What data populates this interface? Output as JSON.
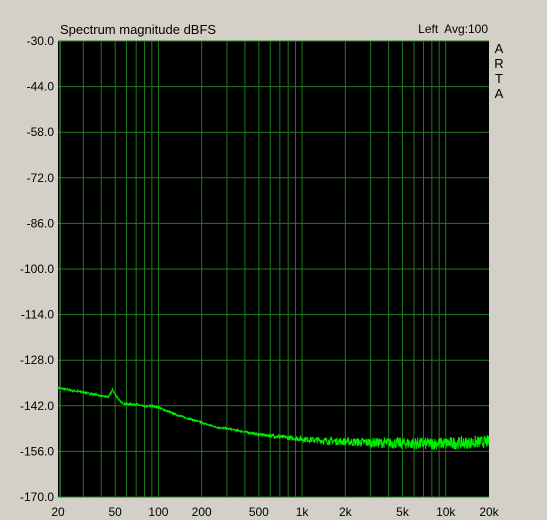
{
  "header": {
    "title": "Spectrum magnitude dBFS",
    "info": "Left  Avg:100",
    "brand": "ARTA"
  },
  "colors": {
    "background": "#d4d0c8",
    "plot_background": "#000000",
    "grid": "#1f7a1f",
    "trace": "#00ee00"
  },
  "chart_data": {
    "type": "line",
    "title": "Spectrum magnitude dBFS",
    "xscale": "log",
    "xlim": [
      20,
      20000
    ],
    "ylim": [
      -170,
      -30
    ],
    "xticks": [
      {
        "value": 20,
        "label": "20"
      },
      {
        "value": 50,
        "label": "50"
      },
      {
        "value": 100,
        "label": "100"
      },
      {
        "value": 200,
        "label": "200"
      },
      {
        "value": 500,
        "label": "500"
      },
      {
        "value": 1000,
        "label": "1k"
      },
      {
        "value": 2000,
        "label": "2k"
      },
      {
        "value": 5000,
        "label": "5k"
      },
      {
        "value": 10000,
        "label": "10k"
      },
      {
        "value": 20000,
        "label": "20k"
      }
    ],
    "yticks": [
      {
        "value": -30,
        "label": "-30.0"
      },
      {
        "value": -44,
        "label": "-44.0"
      },
      {
        "value": -58,
        "label": "-58.0"
      },
      {
        "value": -72,
        "label": "-72.0"
      },
      {
        "value": -86,
        "label": "-86.0"
      },
      {
        "value": -100,
        "label": "-100.0"
      },
      {
        "value": -114,
        "label": "-114.0"
      },
      {
        "value": -128,
        "label": "-128.0"
      },
      {
        "value": -142,
        "label": "-142.0"
      },
      {
        "value": -156,
        "label": "-156.0"
      },
      {
        "value": -170,
        "label": "-170.0"
      }
    ],
    "grid": true,
    "series": [
      {
        "x": [
          20,
          25,
          30,
          35,
          40,
          45,
          48,
          50,
          55,
          60,
          70,
          80,
          90,
          100,
          120,
          150,
          180,
          200,
          250,
          300,
          400,
          500,
          700,
          1000,
          1500,
          2000,
          3000,
          5000,
          7000,
          10000,
          15000,
          20000
        ],
        "y": [
          -136.5,
          -137.3,
          -137.8,
          -138.4,
          -139.0,
          -139.3,
          -137.0,
          -138.5,
          -141.0,
          -141.5,
          -141.5,
          -142.3,
          -142.0,
          -142.5,
          -144.0,
          -145.5,
          -146.5,
          -147.2,
          -148.5,
          -149.0,
          -150.0,
          -150.8,
          -151.5,
          -152.2,
          -152.8,
          -153.0,
          -153.3,
          -153.5,
          -153.6,
          -153.5,
          -153.3,
          -153.0
        ]
      }
    ]
  }
}
